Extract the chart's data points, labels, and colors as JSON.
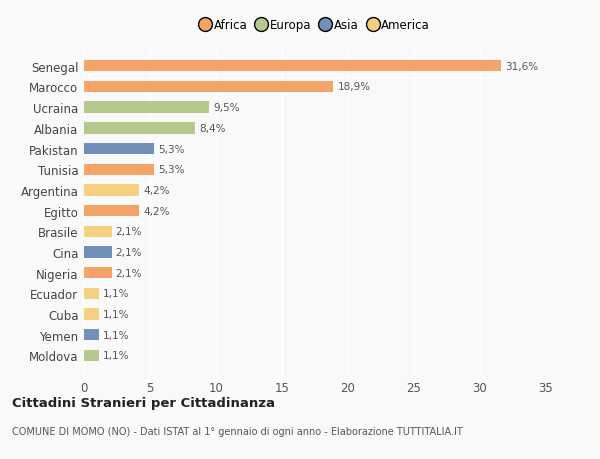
{
  "countries": [
    "Senegal",
    "Marocco",
    "Ucraina",
    "Albania",
    "Pakistan",
    "Tunisia",
    "Argentina",
    "Egitto",
    "Brasile",
    "Cina",
    "Nigeria",
    "Ecuador",
    "Cuba",
    "Yemen",
    "Moldova"
  ],
  "values": [
    31.6,
    18.9,
    9.5,
    8.4,
    5.3,
    5.3,
    4.2,
    4.2,
    2.1,
    2.1,
    2.1,
    1.1,
    1.1,
    1.1,
    1.1
  ],
  "labels": [
    "31,6%",
    "18,9%",
    "9,5%",
    "8,4%",
    "5,3%",
    "5,3%",
    "4,2%",
    "4,2%",
    "2,1%",
    "2,1%",
    "2,1%",
    "1,1%",
    "1,1%",
    "1,1%",
    "1,1%"
  ],
  "continents": [
    "Africa",
    "Africa",
    "Europa",
    "Europa",
    "Asia",
    "Africa",
    "America",
    "Africa",
    "America",
    "Asia",
    "Africa",
    "America",
    "America",
    "Asia",
    "Europa"
  ],
  "colors": {
    "Africa": "#F4A469",
    "Europa": "#B5C98E",
    "Asia": "#7191BC",
    "America": "#F5D080"
  },
  "background_color": "#f9f9f9",
  "title": "Cittadini Stranieri per Cittadinanza",
  "subtitle": "COMUNE DI MOMO (NO) - Dati ISTAT al 1° gennaio di ogni anno - Elaborazione TUTTITALIA.IT",
  "xlim": [
    0,
    35
  ],
  "xticks": [
    0,
    5,
    10,
    15,
    20,
    25,
    30,
    35
  ],
  "legend_order": [
    "Africa",
    "Europa",
    "Asia",
    "America"
  ]
}
